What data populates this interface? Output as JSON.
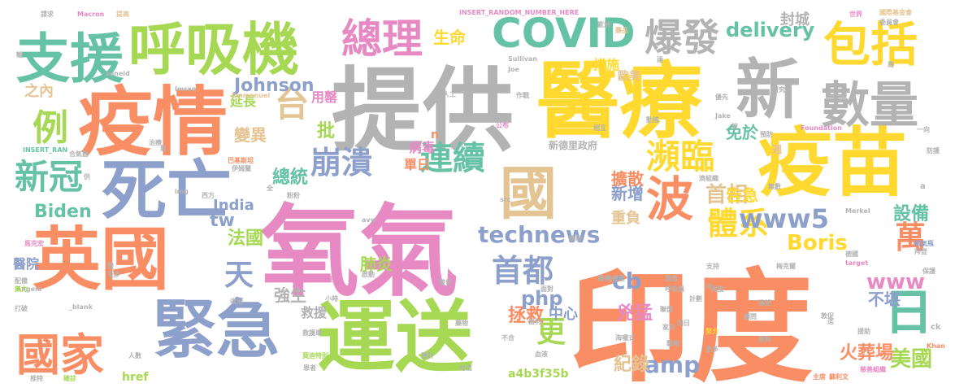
{
  "colors": {
    "background": "#ffffff",
    "orange": "#f98d64",
    "green": "#66c2a5",
    "blue": "#8da0cb",
    "pink": "#e78ac3",
    "lime": "#a6d854",
    "yellow": "#ffd92f",
    "tan": "#e5c494",
    "gray": "#b3b3b3"
  },
  "words": [
    {
      "text": "印度",
      "color": "orange"
    },
    {
      "text": "氧氣",
      "color": "pink"
    },
    {
      "text": "提供",
      "color": "gray"
    },
    {
      "text": "醫療",
      "color": "yellow"
    },
    {
      "text": "運送",
      "color": "lime"
    },
    {
      "text": "疫情",
      "color": "orange"
    },
    {
      "text": "疫苗",
      "color": "yellow"
    },
    {
      "text": "英國",
      "color": "orange"
    },
    {
      "text": "緊急",
      "color": "blue"
    },
    {
      "text": "死亡",
      "color": "blue"
    },
    {
      "text": "國",
      "color": "tan"
    },
    {
      "text": "呼吸機",
      "color": "lime"
    },
    {
      "text": "支援",
      "color": "green"
    },
    {
      "text": "新",
      "color": "gray"
    },
    {
      "text": "數量",
      "color": "gray"
    },
    {
      "text": "包括",
      "color": "yellow"
    },
    {
      "text": "總理",
      "color": "pink"
    },
    {
      "text": "COVID",
      "color": "green"
    },
    {
      "text": "爆發",
      "color": "gray"
    },
    {
      "text": "國家",
      "color": "orange"
    },
    {
      "text": "日",
      "color": "green"
    },
    {
      "text": "波",
      "color": "orange"
    },
    {
      "text": "台",
      "color": "tan"
    },
    {
      "text": "例",
      "color": "lime"
    },
    {
      "text": "新冠",
      "color": "green"
    },
    {
      "text": "連續",
      "color": "green"
    },
    {
      "text": "崩潰",
      "color": "blue"
    },
    {
      "text": "瀕臨",
      "color": "yellow"
    },
    {
      "text": "體系",
      "color": "yellow"
    },
    {
      "text": "首都",
      "color": "blue"
    },
    {
      "text": "天",
      "color": "blue"
    },
    {
      "text": "萬",
      "color": "orange"
    },
    {
      "text": "www5",
      "color": "blue"
    },
    {
      "text": "technews",
      "color": "blue"
    },
    {
      "text": "更",
      "color": "lime"
    },
    {
      "text": "amp",
      "color": "blue"
    },
    {
      "text": "美國",
      "color": "lime"
    },
    {
      "text": "首相",
      "color": "tan"
    },
    {
      "text": "Biden",
      "color": "green"
    },
    {
      "text": "Boris",
      "color": "yellow"
    },
    {
      "text": "delivery",
      "color": "green"
    },
    {
      "text": "Johnson",
      "color": "blue"
    },
    {
      "text": "總統",
      "color": "green"
    },
    {
      "text": "拯救",
      "color": "orange"
    },
    {
      "text": "tw",
      "color": "blue"
    },
    {
      "text": "cb",
      "color": "blue"
    },
    {
      "text": "php",
      "color": "blue"
    },
    {
      "text": "www",
      "color": "pink"
    },
    {
      "text": "設備",
      "color": "green"
    },
    {
      "text": "法國",
      "color": "lime"
    },
    {
      "text": "紀錄",
      "color": "tan"
    },
    {
      "text": "火葬場",
      "color": "orange"
    },
    {
      "text": "批",
      "color": "lime"
    },
    {
      "text": "兇猛",
      "color": "pink"
    },
    {
      "text": "生命",
      "color": "yellow"
    },
    {
      "text": "變異",
      "color": "tan"
    },
    {
      "text": "強生",
      "color": "gray"
    },
    {
      "text": "肺炎",
      "color": "lime"
    },
    {
      "text": "告急",
      "color": "yellow"
    },
    {
      "text": "免於",
      "color": "green"
    },
    {
      "text": "封城",
      "color": "gray"
    },
    {
      "text": "不堪",
      "color": "blue"
    },
    {
      "text": "擴散",
      "color": "orange"
    },
    {
      "text": "新增",
      "color": "blue"
    },
    {
      "text": "重負",
      "color": "tan"
    },
    {
      "text": "India",
      "color": "blue"
    },
    {
      "text": "之內",
      "color": "tan"
    },
    {
      "text": "用罄",
      "color": "pink"
    },
    {
      "text": "延長",
      "color": "lime"
    },
    {
      "text": "措施",
      "color": "yellow"
    },
    {
      "text": "病毒",
      "color": "pink"
    },
    {
      "text": "單日",
      "color": "orange"
    },
    {
      "text": "中心",
      "color": "blue"
    },
    {
      "text": "救援",
      "color": "gray"
    },
    {
      "text": "新德里政府",
      "color": "gray"
    },
    {
      "text": "歐美",
      "color": "tan"
    },
    {
      "text": "醫院",
      "color": "blue"
    },
    {
      "text": "href",
      "color": "lime"
    },
    {
      "text": "a4b3f35b",
      "color": "lime"
    },
    {
      "text": "n",
      "color": "orange"
    },
    {
      "text": "週",
      "color": "tan"
    },
    {
      "text": "INSERT_RANDOM_NUMBER_HERE",
      "color": "pink"
    },
    {
      "text": "Macron",
      "color": "pink"
    },
    {
      "text": "提高",
      "color": "tan"
    },
    {
      "text": "請求",
      "color": "gray"
    },
    {
      "text": "Sullivan",
      "color": "gray"
    },
    {
      "text": "Imran",
      "color": "gray"
    },
    {
      "text": "Joe",
      "color": "gray"
    },
    {
      "text": "zoneid",
      "color": "gray"
    },
    {
      "text": "Emmanuel",
      "color": "tan"
    },
    {
      "text": "Edhi",
      "color": "gray"
    },
    {
      "text": "Jake",
      "color": "gray"
    },
    {
      "text": "Foundation",
      "color": "pink"
    },
    {
      "text": "INSERT_RAN",
      "color": "green"
    },
    {
      "text": "Merkel",
      "color": "gray"
    },
    {
      "text": "Angela",
      "color": "gray"
    },
    {
      "text": "Khan",
      "color": "orange"
    },
    {
      "text": "target",
      "color": "pink"
    },
    {
      "text": "_blank",
      "color": "gray"
    },
    {
      "text": "src",
      "color": "gray"
    },
    {
      "text": "img",
      "color": "gray"
    },
    {
      "text": "avw",
      "color": "gray"
    },
    {
      "text": "ck",
      "color": "gray"
    },
    {
      "text": "a",
      "color": "gray"
    },
    {
      "text": "向德里",
      "color": "gray"
    },
    {
      "text": "梅克爾",
      "color": "gray"
    },
    {
      "text": "海嘯式",
      "color": "gray"
    },
    {
      "text": "巴基斯坦",
      "color": "orange"
    },
    {
      "text": "伊姆蘭",
      "color": "gray"
    },
    {
      "text": "蘇利文",
      "color": "orange"
    },
    {
      "text": "救護車",
      "color": "gray"
    },
    {
      "text": "莫迪特別",
      "color": "lime"
    },
    {
      "text": "慈善組織",
      "color": "pink"
    },
    {
      "text": "氧氣瓶",
      "color": "blue"
    },
    {
      "text": "國際基金會",
      "color": "tan"
    },
    {
      "text": "馬克宏",
      "color": "pink"
    },
    {
      "text": "歐洲",
      "color": "gray"
    },
    {
      "text": "世界",
      "color": "pink"
    },
    {
      "text": "藥品",
      "color": "tan"
    },
    {
      "text": "研究",
      "color": "gray"
    },
    {
      "text": "人工",
      "color": "gray"
    },
    {
      "text": "支持",
      "color": "gray"
    },
    {
      "text": "製造",
      "color": "gray"
    },
    {
      "text": "呼吸器",
      "color": "gray"
    },
    {
      "text": "計劃",
      "color": "gray"
    },
    {
      "text": "家計",
      "color": "gray"
    },
    {
      "text": "努力",
      "color": "yellow"
    },
    {
      "text": "援助",
      "color": "gray"
    },
    {
      "text": "保護",
      "color": "gray"
    },
    {
      "text": "主席",
      "color": "orange"
    },
    {
      "text": "敦促",
      "color": "gray"
    },
    {
      "text": "同日",
      "color": "gray"
    },
    {
      "text": "聯盟",
      "color": "gray"
    },
    {
      "text": "公民",
      "color": "pink"
    },
    {
      "text": "收治",
      "color": "gray"
    },
    {
      "text": "確診",
      "color": "lime"
    },
    {
      "text": "推特",
      "color": "gray"
    },
    {
      "text": "患者",
      "color": "gray"
    },
    {
      "text": "人數",
      "color": "gray"
    },
    {
      "text": "面對",
      "color": "gray"
    },
    {
      "text": "血液",
      "color": "gray"
    },
    {
      "text": "付出",
      "color": "gray"
    },
    {
      "text": "預計",
      "color": "gray"
    },
    {
      "text": "器材",
      "color": "gray"
    },
    {
      "text": "藥物",
      "color": "gray"
    },
    {
      "text": "警世",
      "color": "gray"
    },
    {
      "text": "啟動",
      "color": "gray"
    },
    {
      "text": "小時",
      "color": "gray"
    },
    {
      "text": "刷新",
      "color": "gray"
    },
    {
      "text": "西方",
      "color": "gray"
    },
    {
      "text": "全",
      "color": "gray"
    },
    {
      "text": "粉粉",
      "color": "gray"
    },
    {
      "text": "合氣器",
      "color": "gray"
    },
    {
      "text": "治療",
      "color": "gray"
    },
    {
      "text": "作戰",
      "color": "gray"
    },
    {
      "text": "公布",
      "color": "pink"
    },
    {
      "text": "動搖",
      "color": "gray"
    },
    {
      "text": "無力",
      "color": "lime"
    },
    {
      "text": "打破",
      "color": "gray"
    },
    {
      "text": "配備",
      "color": "gray"
    },
    {
      "text": "需",
      "color": "gray"
    },
    {
      "text": "氣",
      "color": "gray"
    },
    {
      "text": "供",
      "color": "gray"
    },
    {
      "text": "顧問",
      "color": "gray"
    },
    {
      "text": "原料",
      "color": "gray"
    },
    {
      "text": "演說",
      "color": "gray"
    },
    {
      "text": "一向",
      "color": "gray"
    },
    {
      "text": "防護",
      "color": "gray"
    },
    {
      "text": "優先",
      "color": "gray"
    },
    {
      "text": "德國",
      "color": "gray"
    },
    {
      "text": "再度",
      "color": "gray"
    },
    {
      "text": "拜登",
      "color": "gray"
    },
    {
      "text": "更多",
      "color": "gray"
    },
    {
      "text": "委員會",
      "color": "gray"
    },
    {
      "text": "濟組織",
      "color": "gray"
    },
    {
      "text": "南",
      "color": "gray"
    },
    {
      "text": "輪",
      "color": "gray"
    },
    {
      "text": "達",
      "color": "gray"
    },
    {
      "text": "月",
      "color": "gray"
    },
    {
      "text": "無數",
      "color": "gray"
    },
    {
      "text": "迄",
      "color": "gray"
    },
    {
      "text": "戰略",
      "color": "gray"
    },
    {
      "text": "不合",
      "color": "gray"
    },
    {
      "text": "至多",
      "color": "gray"
    },
    {
      "text": "說",
      "color": "gray"
    },
    {
      "text": "預防",
      "color": "gray"
    },
    {
      "text": "相互",
      "color": "gray"
    },
    {
      "text": "攜手",
      "color": "gray"
    }
  ]
}
